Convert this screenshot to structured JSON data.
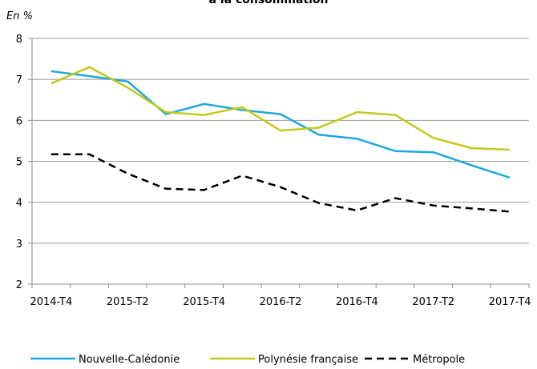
{
  "chart_data": {
    "type": "line",
    "title": "à la consommation",
    "y_label": "En %",
    "categories": [
      "2014-T4",
      null,
      "2015-T2",
      null,
      "2015-T4",
      null,
      "2016-T2",
      null,
      "2016-T4",
      null,
      "2017-T2",
      null,
      "2017-T4"
    ],
    "series": [
      {
        "name": "Nouvelle-Calédonie",
        "color": "#1ea7e0",
        "dash": false,
        "values": [
          7.2,
          7.08,
          6.95,
          6.15,
          6.4,
          6.25,
          6.15,
          5.65,
          5.55,
          5.25,
          5.22,
          4.9,
          4.6
        ]
      },
      {
        "name": "Polynésie française",
        "color": "#c3c81a",
        "dash": false,
        "values": [
          6.9,
          7.3,
          6.8,
          6.2,
          6.13,
          6.32,
          5.75,
          5.82,
          6.2,
          6.13,
          5.57,
          5.32,
          5.28
        ]
      },
      {
        "name": "Métropole",
        "color": "#000000",
        "dash": true,
        "values": [
          5.17,
          5.17,
          4.7,
          4.33,
          4.3,
          4.65,
          4.37,
          3.98,
          3.8,
          4.1,
          3.92,
          3.85,
          3.77
        ]
      }
    ],
    "ylim": [
      2,
      8
    ],
    "yticks": [
      2,
      3,
      4,
      5,
      6,
      7,
      8
    ],
    "grid": true,
    "legend": "bottom"
  }
}
